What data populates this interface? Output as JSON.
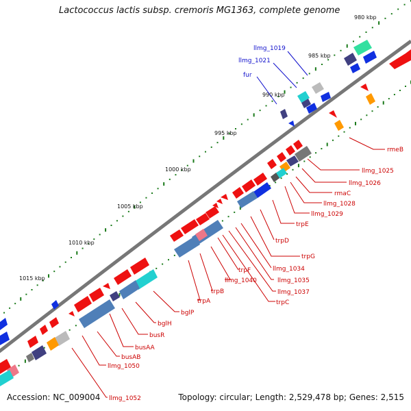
{
  "title": "Lactococcus lactis subsp. cremoris MG1363, complete genome",
  "footer": {
    "accession": "Accession: NC_009004",
    "topology": "Topology: circular; Length: 2,529,478 bp; Genes: 2,515"
  },
  "colors": {
    "backbone": "#777777",
    "tick": "#1a7a1a",
    "label_top": "#1010cc",
    "label_bottom": "#cc0000",
    "gene_red": "#ee1111",
    "gene_blue": "#1030e0",
    "gene_steel": "#4f7fb8",
    "gene_cyan": "#22d0d0",
    "gene_orange": "#ff9900",
    "gene_navy": "#404080",
    "gene_gray": "#999999",
    "gene_mint": "#33e0a0"
  },
  "kbp_ticks": [
    "980 kbp",
    "985 kbp",
    "990 kbp",
    "995 kbp",
    "1000 kbp",
    "1005 kbp",
    "1010 kbp",
    "1015 kbp"
  ],
  "labels_top": [
    "llmg_1019",
    "llmg_1021",
    "fur"
  ],
  "labels_bottom": [
    "rmeB",
    "llmg_1025",
    "llmg_1026",
    "rmaC",
    "llmg_1028",
    "llmg_1029",
    "trpE",
    "trpG",
    "trpD",
    "llmg_1034",
    "llmg_1035",
    "llmg_1037",
    "trpC",
    "trpF",
    "llmg_1040",
    "trpB",
    "trpA",
    "bglP",
    "bglH",
    "busR",
    "busAA",
    "busAB",
    "llmg_1050",
    "llmg_1052"
  ]
}
